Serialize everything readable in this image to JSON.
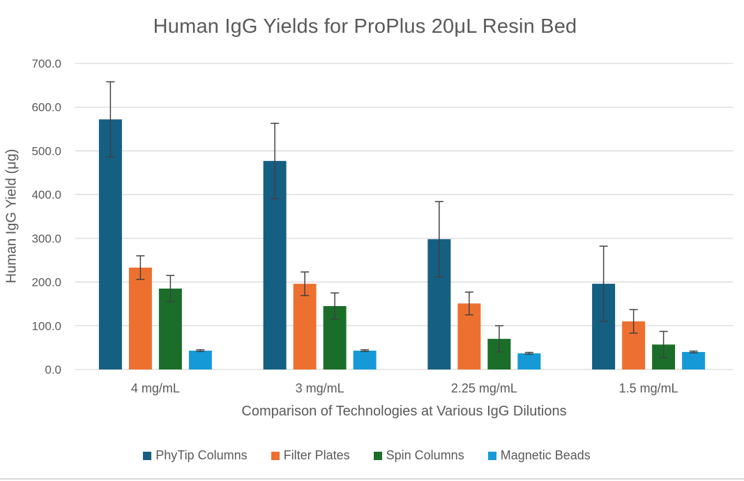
{
  "chart_data": {
    "type": "bar",
    "title": "Human IgG Yields for ProPlus 20μL Resin Bed",
    "xlabel": "Comparison of Technologies at Various IgG Dilutions",
    "ylabel": "Human IgG Yield (μg)",
    "ylim": [
      0,
      700
    ],
    "yticks": [
      "0.0",
      "100.0",
      "200.0",
      "300.0",
      "400.0",
      "500.0",
      "600.0",
      "700.0"
    ],
    "grid": true,
    "legend_position": "bottom",
    "categories": [
      "4 mg/mL",
      "3 mg/mL",
      "2.25 mg/mL",
      "1.5 mg/mL"
    ],
    "series": [
      {
        "name": "PhyTip Columns",
        "color": "#155f83",
        "values": [
          572,
          477,
          298,
          196
        ],
        "errors": [
          86,
          86,
          86,
          86
        ]
      },
      {
        "name": "Filter Plates",
        "color": "#ed7030",
        "values": [
          233,
          196,
          151,
          110
        ],
        "errors": [
          27,
          27,
          26,
          27
        ]
      },
      {
        "name": "Spin Columns",
        "color": "#1b6e29",
        "values": [
          185,
          145,
          70,
          57
        ],
        "errors": [
          30,
          30,
          30,
          30
        ]
      },
      {
        "name": "Magnetic Beads",
        "color": "#159ad7",
        "values": [
          43,
          43,
          37,
          40
        ],
        "errors": [
          2,
          2,
          2,
          2
        ]
      }
    ]
  },
  "colors": {
    "text": "#595959",
    "gridline": "#d9d9d9",
    "error_bar": "#404040"
  }
}
